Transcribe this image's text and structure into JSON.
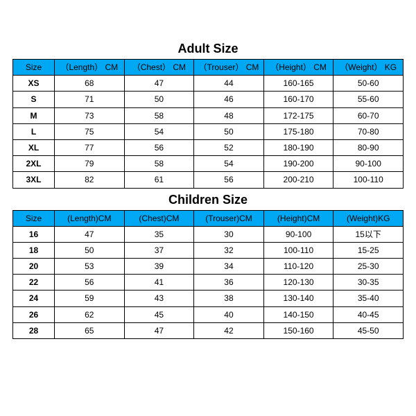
{
  "colors": {
    "header_bg": "#00a8f3",
    "border": "#000000",
    "bg": "#ffffff",
    "text": "#000000"
  },
  "adult": {
    "title": "Adult Size",
    "columns": [
      "Size",
      "（Length） CM",
      "（Chest） CM",
      "（Trouser） CM",
      "（Height） CM",
      "（Weight） KG"
    ],
    "rows": [
      [
        "XS",
        "68",
        "47",
        "44",
        "160-165",
        "50-60"
      ],
      [
        "S",
        "71",
        "50",
        "46",
        "160-170",
        "55-60"
      ],
      [
        "M",
        "73",
        "58",
        "48",
        "172-175",
        "60-70"
      ],
      [
        "L",
        "75",
        "54",
        "50",
        "175-180",
        "70-80"
      ],
      [
        "XL",
        "77",
        "56",
        "52",
        "180-190",
        "80-90"
      ],
      [
        "2XL",
        "79",
        "58",
        "54",
        "190-200",
        "90-100"
      ],
      [
        "3XL",
        "82",
        "61",
        "56",
        "200-210",
        "100-110"
      ]
    ]
  },
  "children": {
    "title": "Children Size",
    "columns": [
      "Size",
      "(Length)CM",
      "(Chest)CM",
      "(Trouser)CM",
      "(Height)CM",
      "(Weight)KG"
    ],
    "rows": [
      [
        "16",
        "47",
        "35",
        "30",
        "90-100",
        "15以下"
      ],
      [
        "18",
        "50",
        "37",
        "32",
        "100-110",
        "15-25"
      ],
      [
        "20",
        "53",
        "39",
        "34",
        "110-120",
        "25-30"
      ],
      [
        "22",
        "56",
        "41",
        "36",
        "120-130",
        "30-35"
      ],
      [
        "24",
        "59",
        "43",
        "38",
        "130-140",
        "35-40"
      ],
      [
        "26",
        "62",
        "45",
        "40",
        "140-150",
        "40-45"
      ],
      [
        "28",
        "65",
        "47",
        "42",
        "150-160",
        "45-50"
      ]
    ]
  }
}
